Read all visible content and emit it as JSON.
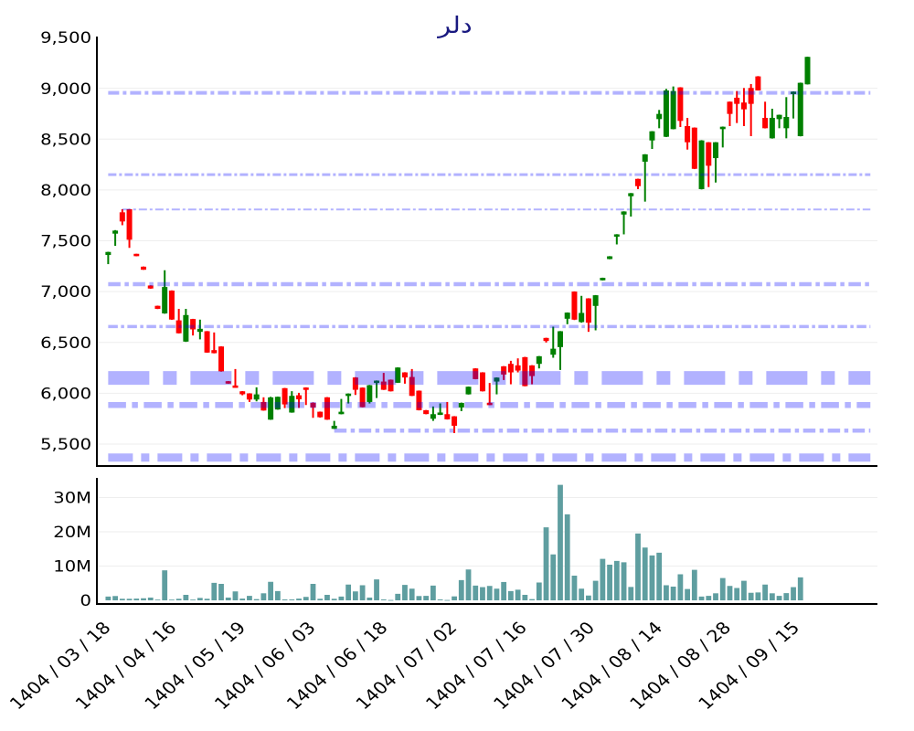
{
  "chart_data": [
    {
      "type": "candlestick",
      "title": "دلر",
      "title_color": "#191980",
      "xlabel": "",
      "ylabel": "",
      "xlim": [
        -1.6,
        108.9
      ],
      "ylim": [
        5284,
        9500
      ],
      "grid": true,
      "y_ticks": [
        9500,
        9000,
        8500,
        8000,
        7500,
        7000,
        6500,
        6000,
        5500
      ],
      "y_tick_labels": [
        "9,500",
        "9,000",
        "8,500",
        "8,000",
        "7,500",
        "7,000",
        "6,500",
        "6,000",
        "5,500"
      ],
      "increasing_color": "#008000",
      "decreasing_color": "#ff0000",
      "candle_fields": [
        "open",
        "high",
        "low",
        "close"
      ],
      "candles": [
        [
          7360,
          7392,
          7270,
          7390
        ],
        [
          7570,
          7605,
          7450,
          7600
        ],
        [
          7780,
          7810,
          7653,
          7690
        ],
        [
          7810,
          7812,
          7430,
          7510
        ],
        [
          7370,
          7372,
          7347,
          7350
        ],
        [
          7245,
          7247,
          7214,
          7215
        ],
        [
          7060,
          7062,
          7028,
          7030
        ],
        [
          6860,
          6862,
          6828,
          6830
        ],
        [
          6785,
          7210,
          6782,
          7045
        ],
        [
          7010,
          7012,
          6722,
          6725
        ],
        [
          6717,
          6830,
          6588,
          6590
        ],
        [
          6508,
          6830,
          6505,
          6769
        ],
        [
          6730,
          6732,
          6568,
          6628
        ],
        [
          6604,
          6724,
          6530,
          6634
        ],
        [
          6610,
          6612,
          6398,
          6400
        ],
        [
          6424,
          6598,
          6392,
          6394
        ],
        [
          6460,
          6462,
          6212,
          6215
        ],
        [
          6118,
          6120,
          6093,
          6095
        ],
        [
          6073,
          6238,
          6054,
          6056
        ],
        [
          6019,
          6021,
          5980,
          5990
        ],
        [
          5998,
          6000,
          5914,
          5938
        ],
        [
          5938,
          6058,
          5920,
          5989
        ],
        [
          5914,
          5960,
          5828,
          5830
        ],
        [
          5740,
          5965,
          5738,
          5959
        ],
        [
          5840,
          5967,
          5838,
          5965
        ],
        [
          6050,
          6052,
          5854,
          5890
        ],
        [
          5810,
          6020,
          5808,
          5974
        ],
        [
          5980,
          6004,
          5855,
          5940
        ],
        [
          6055,
          6058,
          5884,
          6034
        ],
        [
          5905,
          5910,
          5758,
          5860
        ],
        [
          5818,
          5820,
          5760,
          5764
        ],
        [
          5960,
          5962,
          5738,
          5740
        ],
        [
          5650,
          5728,
          5648,
          5680
        ],
        [
          5794,
          5944,
          5792,
          5818
        ],
        [
          5974,
          5998,
          5899,
          5995
        ],
        [
          6155,
          6158,
          5983,
          6034
        ],
        [
          6055,
          6057,
          5861,
          5863
        ],
        [
          5914,
          6082,
          5899,
          6079
        ],
        [
          6101,
          6126,
          5953,
          6124
        ],
        [
          6115,
          6200,
          6032,
          6034
        ],
        [
          6133,
          6135,
          6017,
          6019
        ],
        [
          6103,
          6255,
          6101,
          6253
        ],
        [
          6205,
          6207,
          6094,
          6155
        ],
        [
          6160,
          6238,
          5972,
          5974
        ],
        [
          6025,
          6027,
          5831,
          5833
        ],
        [
          5833,
          5835,
          5793,
          5795
        ],
        [
          5749,
          5870,
          5728,
          5794
        ],
        [
          5788,
          5900,
          5786,
          5809
        ],
        [
          5794,
          5914,
          5741,
          5743
        ],
        [
          5773,
          5775,
          5608,
          5680
        ],
        [
          5860,
          5908,
          5824,
          5905
        ],
        [
          5989,
          6066,
          5987,
          6064
        ],
        [
          6244,
          6246,
          6137,
          6139
        ],
        [
          6205,
          6207,
          6017,
          6019
        ],
        [
          5905,
          6101,
          5882,
          5884
        ],
        [
          6115,
          6156,
          5989,
          6154
        ],
        [
          6265,
          6267,
          6130,
          6184
        ],
        [
          6289,
          6319,
          6088,
          6205
        ],
        [
          6274,
          6343,
          6205,
          6223
        ],
        [
          6355,
          6358,
          6068,
          6070
        ],
        [
          6274,
          6276,
          6088,
          6169
        ],
        [
          6289,
          6366,
          6244,
          6364
        ],
        [
          6544,
          6546,
          6499,
          6514
        ],
        [
          6379,
          6655,
          6349,
          6438
        ],
        [
          6454,
          6612,
          6229,
          6610
        ],
        [
          6733,
          6795,
          6679,
          6793
        ],
        [
          7000,
          7002,
          6720,
          6724
        ],
        [
          6700,
          6958,
          6694,
          6790
        ],
        [
          6933,
          6935,
          6604,
          6694
        ],
        [
          6859,
          6966,
          6619,
          6964
        ],
        [
          7111,
          7137,
          7109,
          7135
        ],
        [
          7320,
          7349,
          7318,
          7347
        ],
        [
          7540,
          7565,
          7464,
          7563
        ],
        [
          7758,
          7790,
          7563,
          7788
        ],
        [
          7938,
          7970,
          7738,
          7968
        ],
        [
          8109,
          8111,
          8008,
          8037
        ],
        [
          8278,
          8352,
          7885,
          8350
        ],
        [
          8487,
          8579,
          8403,
          8577
        ],
        [
          8697,
          8787,
          8607,
          8748
        ],
        [
          8523,
          8994,
          8520,
          8979
        ],
        [
          8598,
          9018,
          8596,
          8973
        ],
        [
          9009,
          9011,
          8619,
          8679
        ],
        [
          8628,
          8709,
          8397,
          8469
        ],
        [
          8613,
          8615,
          8205,
          8208
        ],
        [
          8008,
          8490,
          8005,
          8487
        ],
        [
          8469,
          8471,
          8028,
          8238
        ],
        [
          8313,
          8471,
          8073,
          8469
        ],
        [
          8598,
          8624,
          8418,
          8622
        ],
        [
          8868,
          8870,
          8628,
          8748
        ],
        [
          8907,
          8973,
          8658,
          8847
        ],
        [
          8860,
          9003,
          8628,
          8793
        ],
        [
          9003,
          9042,
          8529,
          8847
        ],
        [
          9117,
          9120,
          8978,
          8979
        ],
        [
          8709,
          8868,
          8605,
          8607
        ],
        [
          8508,
          8799,
          8505,
          8709
        ],
        [
          8697,
          8741,
          8607,
          8739
        ],
        [
          8607,
          8913,
          8508,
          8718
        ],
        [
          8943,
          8969,
          8703,
          8967
        ],
        [
          8529,
          9056,
          8527,
          9054
        ],
        [
          9039,
          9311,
          9037,
          9309
        ]
      ],
      "levels_color": "#0000ff",
      "levels_opacity": 0.3,
      "levels_dash": "dashdot",
      "levels": [
        {
          "value": 8955,
          "width": 4,
          "from_index": 0,
          "to_index": 107.9
        },
        {
          "value": 8151,
          "width": 3,
          "from_index": 0,
          "to_index": 107.9
        },
        {
          "value": 7808,
          "width": 2,
          "from_index": 2,
          "to_index": 107.9
        },
        {
          "value": 7073,
          "width": 4.5,
          "from_index": 0,
          "to_index": 107.9
        },
        {
          "value": 6656,
          "width": 3.5,
          "from_index": 0,
          "to_index": 107.9
        },
        {
          "value": 6150,
          "width": 15,
          "from_index": 0,
          "to_index": 107.9
        },
        {
          "value": 5884,
          "width": 6.5,
          "from_index": 0,
          "to_index": 107.9
        },
        {
          "value": 5632,
          "width": 4.5,
          "from_index": 32,
          "to_index": 107.9
        },
        {
          "value": 5367,
          "width": 9,
          "from_index": 0,
          "to_index": 107.9
        }
      ]
    },
    {
      "type": "bar",
      "title": "",
      "xlabel": "",
      "ylabel": "",
      "unit": "M",
      "xlim": [
        -1.6,
        108.9
      ],
      "ylim": [
        -1.07,
        35.73
      ],
      "grid": true,
      "y_ticks": [
        0,
        10,
        20,
        30
      ],
      "y_tick_labels": [
        "0",
        "10M",
        "20M",
        "30M"
      ],
      "color": "#5f9ea0",
      "values": [
        1.1,
        1.25,
        0.45,
        0.45,
        0.5,
        0.6,
        0.8,
        0.2,
        8.75,
        0.2,
        0.45,
        1.6,
        0.2,
        0.7,
        0.45,
        5.1,
        4.8,
        0.8,
        2.6,
        0.5,
        1.3,
        0.35,
        2.05,
        5.4,
        2.7,
        0.25,
        0.25,
        0.5,
        1.0,
        4.8,
        0.45,
        1.6,
        0.45,
        1.1,
        4.6,
        2.6,
        4.4,
        0.8,
        6.1,
        0.25,
        0.1,
        1.9,
        4.5,
        3.4,
        1.25,
        1.3,
        4.3,
        0.25,
        0.1,
        1.15,
        5.9,
        9.0,
        4.3,
        3.85,
        4.2,
        3.4,
        5.35,
        2.7,
        3.1,
        1.6,
        0.35,
        5.2,
        21.3,
        13.4,
        33.7,
        25.1,
        7.2,
        3.4,
        1.4,
        5.7,
        12.1,
        10.4,
        11.5,
        11.1,
        3.9,
        19.5,
        15.4,
        13.1,
        13.9,
        4.4,
        4.0,
        7.6,
        3.3,
        8.9,
        1.1,
        1.3,
        2.05,
        6.5,
        4.2,
        3.6,
        5.7,
        2.2,
        2.3,
        4.6,
        2.05,
        1.3,
        2.1,
        3.85,
        6.7,
        0
      ],
      "x_ticks": [
        {
          "index": 0.5,
          "label": "1404 / 03 / 18"
        },
        {
          "index": 9.8,
          "label": "1404 / 04 / 16"
        },
        {
          "index": 19.6,
          "label": "1404 / 05 / 19"
        },
        {
          "index": 29.5,
          "label": "1404 / 06 / 03"
        },
        {
          "index": 39.7,
          "label": "1404 / 06 / 18"
        },
        {
          "index": 49.5,
          "label": "1404 / 07 / 02"
        },
        {
          "index": 59.4,
          "label": "1404 / 07 / 16"
        },
        {
          "index": 69.0,
          "label": "1404 / 07 / 30"
        },
        {
          "index": 78.6,
          "label": "1404 / 08 / 14"
        },
        {
          "index": 88.3,
          "label": "1404 / 08 / 28"
        },
        {
          "index": 98.0,
          "label": "1404 / 09 / 15"
        }
      ]
    }
  ]
}
